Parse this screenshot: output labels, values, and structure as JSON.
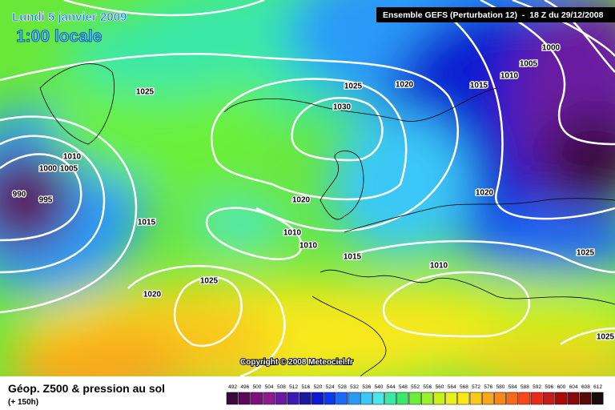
{
  "header": {
    "title": "Lundi 5 janvier 2009",
    "subtitle": "1:00 locale",
    "run": "Ensemble GEFS (Perturbation 12)  -  18 Z du 29/12/2008"
  },
  "isobar_labels": [
    "1000",
    "1005",
    "1010",
    "1015",
    "1020",
    "1025",
    "1030",
    "1025",
    "1010",
    "1000",
    "1005",
    "990",
    "995",
    "1015",
    "1020",
    "1010",
    "1010",
    "1015",
    "1010",
    "1020",
    "1025",
    "1025",
    "1020",
    "1025"
  ],
  "copyright": "Copyright © 2008 Meteociel.fr",
  "footer": {
    "title": "Géop. Z500 & pression au sol",
    "lead": "(+ 150h)"
  },
  "legend": {
    "levels": [
      "492",
      "496",
      "500",
      "504",
      "508",
      "512",
      "516",
      "520",
      "524",
      "528",
      "532",
      "536",
      "540",
      "544",
      "548",
      "552",
      "556",
      "560",
      "564",
      "568",
      "572",
      "576",
      "580",
      "584",
      "588",
      "592",
      "596",
      "600",
      "604",
      "608",
      "612"
    ],
    "colors": [
      "#3a0a3a",
      "#5a0a5a",
      "#7a127a",
      "#8e1a8e",
      "#6a1aa0",
      "#3a1ab0",
      "#1a1aa0",
      "#0a1ad0",
      "#0a3af0",
      "#1a6af8",
      "#2a9af8",
      "#3ac8f8",
      "#4ae8e8",
      "#3ae8a8",
      "#3ae86a",
      "#6af03a",
      "#9af02a",
      "#caf01a",
      "#eaf01a",
      "#f8e81a",
      "#f8c81a",
      "#f8a81a",
      "#f8881a",
      "#f8681a",
      "#f8481a",
      "#e82a1a",
      "#c81a1a",
      "#a80a0a",
      "#880a0a",
      "#580a0a",
      "#1a0a0a"
    ]
  }
}
